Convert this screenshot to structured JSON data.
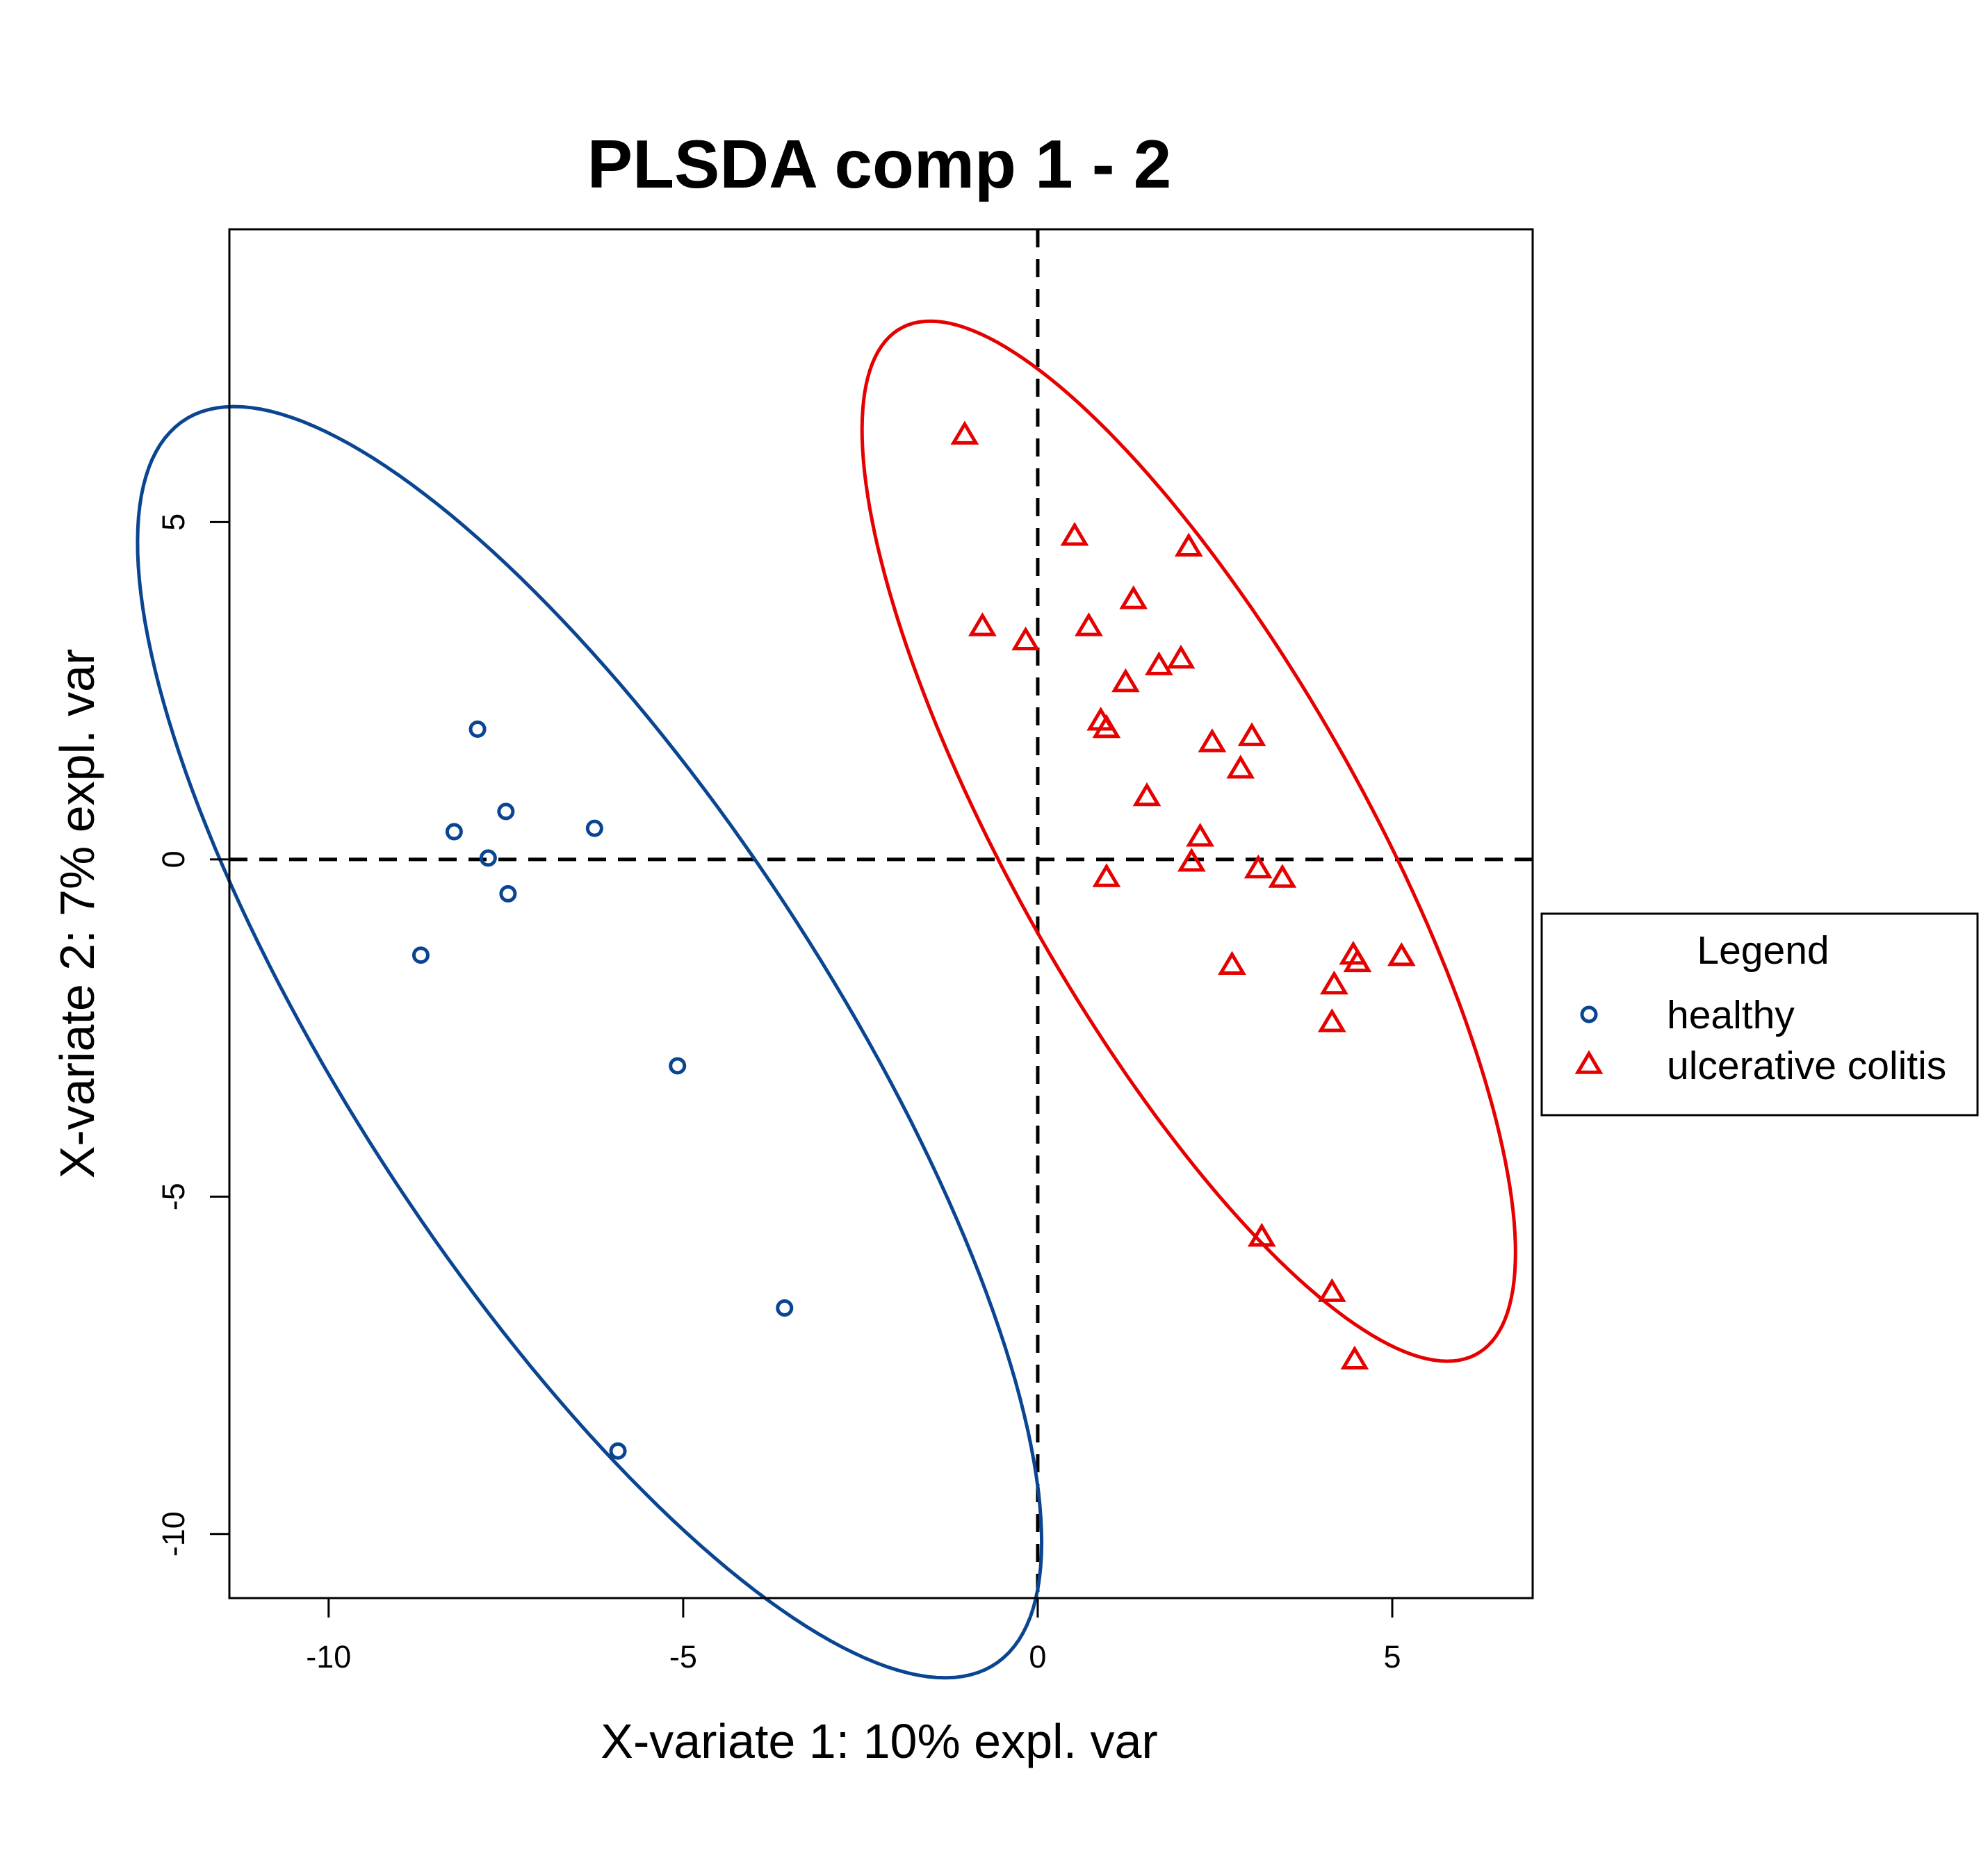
{
  "chart_data": {
    "type": "scatter",
    "title": "PLSDA comp 1 - 2",
    "xlabel": "X-variate 1: 10% expl. var",
    "ylabel": "X-variate 2: 7% expl. var",
    "xlim": [
      -11.4,
      6.98
    ],
    "ylim": [
      -10.95,
      9.34
    ],
    "xticks": [
      -10,
      -5,
      0,
      5
    ],
    "yticks": [
      -10,
      -5,
      0,
      5
    ],
    "xtick_labels": [
      "-10",
      "-5",
      "0",
      "5"
    ],
    "ytick_labels": [
      "-10",
      "-5",
      "0",
      "5"
    ],
    "reference_lines": {
      "x": 0,
      "y": 0,
      "style": "dashed"
    },
    "grid": false,
    "legend": {
      "title": "Legend",
      "placement": "right of plot",
      "entries": [
        "healthy",
        "ulcerative colitis"
      ]
    },
    "series": [
      {
        "name": "healthy",
        "marker": "circle",
        "color": "#0a4591",
        "points": [
          [
            -7.9,
            1.93
          ],
          [
            -7.5,
            0.71
          ],
          [
            -8.23,
            0.41
          ],
          [
            -7.75,
            0.02
          ],
          [
            -6.25,
            0.46
          ],
          [
            -7.47,
            -0.51
          ],
          [
            -8.7,
            -1.42
          ],
          [
            -5.08,
            -3.06
          ],
          [
            -3.57,
            -6.65
          ],
          [
            -5.92,
            -8.77
          ]
        ],
        "ellipse": {
          "center": [
            -6.32,
            -2.71
          ],
          "semi_major": 10.85,
          "semi_minor": 3.42,
          "angle_deg": 121.5
        }
      },
      {
        "name": "ulcerative colitis",
        "marker": "triangle",
        "color": "#e60000",
        "points": [
          [
            -1.03,
            6.28
          ],
          [
            0.52,
            4.78
          ],
          [
            2.13,
            4.62
          ],
          [
            1.35,
            3.84
          ],
          [
            -0.78,
            3.44
          ],
          [
            0.72,
            3.44
          ],
          [
            -0.17,
            3.23
          ],
          [
            2.02,
            2.96
          ],
          [
            1.71,
            2.86
          ],
          [
            1.24,
            2.61
          ],
          [
            0.89,
            2.04
          ],
          [
            0.97,
            1.93
          ],
          [
            3.02,
            1.81
          ],
          [
            2.46,
            1.72
          ],
          [
            2.86,
            1.33
          ],
          [
            1.54,
            0.92
          ],
          [
            2.29,
            0.32
          ],
          [
            0.97,
            -0.28
          ],
          [
            2.17,
            -0.05
          ],
          [
            3.11,
            -0.15
          ],
          [
            3.45,
            -0.29
          ],
          [
            4.45,
            -1.43
          ],
          [
            4.51,
            -1.54
          ],
          [
            5.13,
            -1.45
          ],
          [
            2.74,
            -1.58
          ],
          [
            4.18,
            -1.87
          ],
          [
            4.15,
            -2.43
          ],
          [
            3.16,
            -5.61
          ],
          [
            4.15,
            -6.43
          ],
          [
            4.47,
            -7.43
          ]
        ],
        "ellipse": {
          "center": [
            2.13,
            0.27
          ],
          "semi_major": 8.62,
          "semi_minor": 2.52,
          "angle_deg": 117.9
        }
      }
    ]
  }
}
